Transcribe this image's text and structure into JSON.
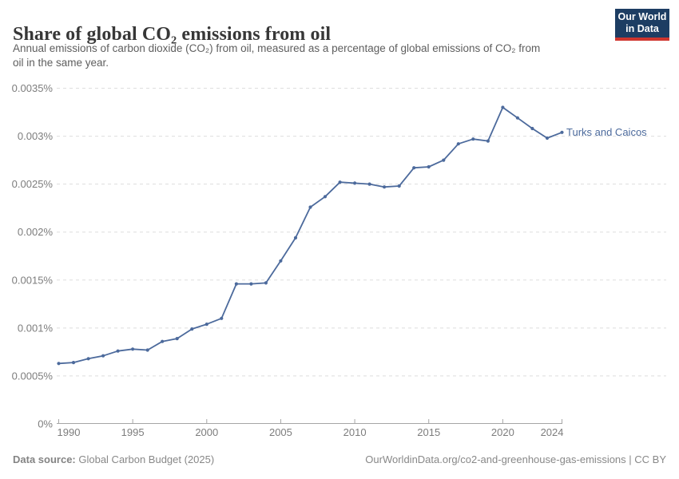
{
  "header": {
    "title": "Share of global CO₂ emissions from oil",
    "subtitle_line1": "Annual emissions of carbon dioxide (CO₂) from oil, measured as a percentage of global emissions of CO₂ from",
    "subtitle_line2": "oil in the same year.",
    "logo": {
      "line1": "Our World",
      "line2": "in Data",
      "bg_color": "#1d3d63",
      "accent_color": "#cf352e"
    }
  },
  "chart_data": {
    "type": "line",
    "title": "Share of global CO₂ emissions from oil",
    "xlabel": "",
    "ylabel": "",
    "unit": "%",
    "xlim": [
      1990,
      2024
    ],
    "ylim": [
      0,
      0.0035
    ],
    "grid": "horizontal-dashed",
    "legend_position": "end-of-line-label",
    "x": [
      1990,
      1991,
      1992,
      1993,
      1994,
      1995,
      1996,
      1997,
      1998,
      1999,
      2000,
      2001,
      2002,
      2003,
      2004,
      2005,
      2006,
      2007,
      2008,
      2009,
      2010,
      2011,
      2012,
      2013,
      2014,
      2015,
      2016,
      2017,
      2018,
      2019,
      2020,
      2021,
      2022,
      2023,
      2024
    ],
    "series": [
      {
        "name": "Turks and Caicos",
        "color": "#4c6a9c",
        "values": [
          0.00063,
          0.00064,
          0.00068,
          0.00071,
          0.00076,
          0.00078,
          0.00077,
          0.00086,
          0.00089,
          0.00099,
          0.00104,
          0.0011,
          0.00146,
          0.00146,
          0.00147,
          0.0017,
          0.00194,
          0.00226,
          0.00237,
          0.00252,
          0.00251,
          0.0025,
          0.00247,
          0.00248,
          0.00267,
          0.00268,
          0.00275,
          0.00292,
          0.00297,
          0.00295,
          0.0033,
          0.00319,
          0.00308,
          0.00298,
          0.00304
        ]
      }
    ],
    "y_ticks": [
      {
        "value": 0,
        "label": "0%"
      },
      {
        "value": 0.0005,
        "label": "0.0005%"
      },
      {
        "value": 0.001,
        "label": "0.001%"
      },
      {
        "value": 0.0015,
        "label": "0.0015%"
      },
      {
        "value": 0.002,
        "label": "0.002%"
      },
      {
        "value": 0.0025,
        "label": "0.0025%"
      },
      {
        "value": 0.003,
        "label": "0.003%"
      },
      {
        "value": 0.0035,
        "label": "0.0035%"
      }
    ],
    "x_ticks": [
      {
        "year": 1990,
        "label": "1990",
        "align": "start"
      },
      {
        "year": 1995,
        "label": "1995",
        "align": "middle"
      },
      {
        "year": 2000,
        "label": "2000",
        "align": "middle"
      },
      {
        "year": 2005,
        "label": "2005",
        "align": "middle"
      },
      {
        "year": 2010,
        "label": "2010",
        "align": "middle"
      },
      {
        "year": 2015,
        "label": "2015",
        "align": "middle"
      },
      {
        "year": 2020,
        "label": "2020",
        "align": "middle"
      },
      {
        "year": 2024,
        "label": "2024",
        "align": "end"
      }
    ],
    "colors": {
      "gridline": "#dddddd",
      "axis": "#a5a5a5",
      "tick_label": "#7d7d7d"
    }
  },
  "footer": {
    "datasource_label": "Data source:",
    "datasource_value": " Global Carbon Budget (2025)",
    "link": "OurWorldinData.org/co2-and-greenhouse-gas-emissions | CC BY"
  }
}
